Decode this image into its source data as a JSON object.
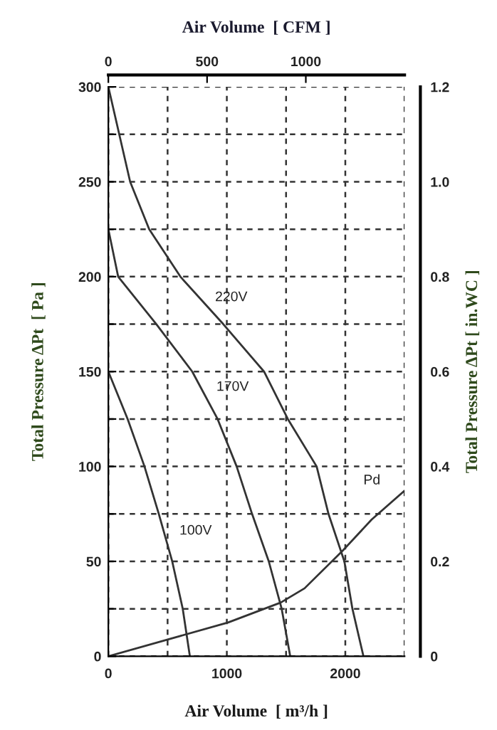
{
  "chart_data": {
    "type": "line",
    "xlabel": "Air Volume  [ m³/h ]",
    "x2label": "Air Volume  [ CFM ]",
    "ylabel": "Total Pressure ΔPt  [ Pa ]",
    "y2label": "Total Pressure ΔPt [ in.WC ]",
    "xlim": [
      0,
      2500
    ],
    "xticks": [
      0,
      {
        "value": 500,
        "label": null
      },
      1000,
      {
        "value": 1500,
        "label": null
      },
      2000,
      {
        "value": 2500,
        "label": null
      }
    ],
    "x2lim": [
      0,
      1500
    ],
    "x2ticks": [
      0,
      500,
      1000
    ],
    "ylim": [
      0,
      300
    ],
    "yticks": [
      0,
      {
        "value": 25,
        "label": null
      },
      50,
      {
        "value": 75,
        "label": null
      },
      100,
      {
        "value": 125,
        "label": null
      },
      150,
      {
        "value": 175,
        "label": null
      },
      200,
      {
        "value": 225,
        "label": null
      },
      250,
      {
        "value": 275,
        "label": null
      },
      300
    ],
    "y2lim": [
      0,
      1.2
    ],
    "y2ticks": [
      0,
      0.2,
      0.4,
      0.6,
      0.8,
      {
        "value": 1.0,
        "label": "1.0"
      },
      1.2
    ],
    "grid": true,
    "line_style": "solid",
    "marker": "none",
    "series": [
      {
        "name": "220V",
        "color": "#333333",
        "x": [
          0,
          184,
          345,
          608,
          970,
          1314,
          1515,
          1758,
          1858,
          1992,
          2060,
          2153
        ],
        "values": [
          300,
          250,
          225,
          200,
          175,
          150,
          125,
          100,
          75,
          50,
          25,
          0
        ]
      },
      {
        "name": "170V",
        "color": "#333333",
        "x": [
          0,
          83,
          405,
          708,
          922,
          1083,
          1213,
          1354,
          1463,
          1535
        ],
        "values": [
          225,
          200,
          175,
          150,
          125,
          100,
          75,
          50,
          25,
          0
        ]
      },
      {
        "name": "100V",
        "color": "#333333",
        "x": [
          0,
          163,
          305,
          426,
          539,
          628,
          688
        ],
        "values": [
          150,
          125,
          100,
          75,
          50,
          25,
          0
        ]
      },
      {
        "name": "Pd",
        "color": "#333333",
        "x": [
          0,
          607,
          1011,
          1455,
          1656,
          1979,
          2222,
          2496
        ],
        "values": [
          0,
          10.7,
          17.8,
          28.3,
          35.8,
          55.7,
          72,
          87
        ]
      }
    ]
  }
}
